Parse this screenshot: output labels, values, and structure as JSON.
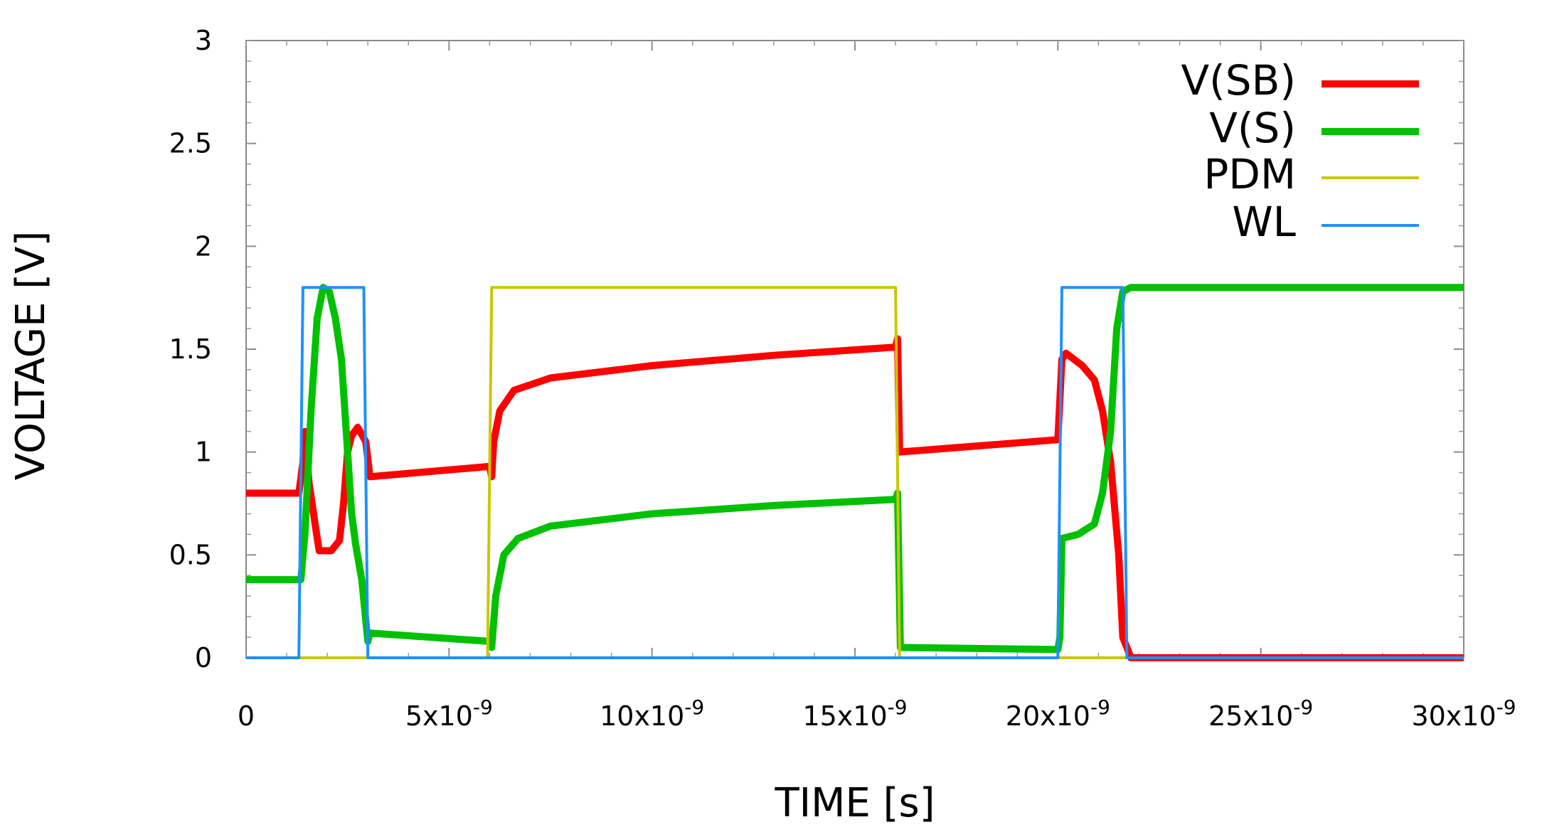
{
  "chart_data": {
    "type": "line",
    "title": "",
    "xlabel": "TIME [s]",
    "ylabel": "VOLTAGE [V]",
    "xlim": [
      0,
      3e-08
    ],
    "ylim": [
      0,
      3
    ],
    "grid": false,
    "legend_position": "top-right",
    "x_ticks": [
      {
        "value": 0,
        "mantissa": "0",
        "exp": ""
      },
      {
        "value": 5e-09,
        "mantissa": "5x10",
        "exp": "-9"
      },
      {
        "value": 1e-08,
        "mantissa": "10x10",
        "exp": "-9"
      },
      {
        "value": 1.5e-08,
        "mantissa": "15x10",
        "exp": "-9"
      },
      {
        "value": 2e-08,
        "mantissa": "20x10",
        "exp": "-9"
      },
      {
        "value": 2.5e-08,
        "mantissa": "25x10",
        "exp": "-9"
      },
      {
        "value": 3e-08,
        "mantissa": "30x10",
        "exp": "-9"
      }
    ],
    "y_ticks": [
      {
        "value": 0,
        "label": "0"
      },
      {
        "value": 0.5,
        "label": "0.5"
      },
      {
        "value": 1,
        "label": "1"
      },
      {
        "value": 1.5,
        "label": "1.5"
      },
      {
        "value": 2,
        "label": "2"
      },
      {
        "value": 2.5,
        "label": "2.5"
      },
      {
        "value": 3,
        "label": "3"
      }
    ],
    "series": [
      {
        "name": "V(SB)",
        "color": "#ff0000",
        "width": 10,
        "points": [
          [
            0,
            0.8
          ],
          [
            1.3e-09,
            0.8
          ],
          [
            1.4e-09,
            0.95
          ],
          [
            1.45e-09,
            1.1
          ],
          [
            1.55e-09,
            0.85
          ],
          [
            1.7e-09,
            0.65
          ],
          [
            1.8e-09,
            0.52
          ],
          [
            2.1e-09,
            0.52
          ],
          [
            2.3e-09,
            0.57
          ],
          [
            2.4e-09,
            0.75
          ],
          [
            2.5e-09,
            1.0
          ],
          [
            2.6e-09,
            1.08
          ],
          [
            2.75e-09,
            1.12
          ],
          [
            2.95e-09,
            1.05
          ],
          [
            3.05e-09,
            0.88
          ],
          [
            6e-09,
            0.93
          ],
          [
            6.05e-09,
            0.88
          ],
          [
            6.1e-09,
            1.05
          ],
          [
            6.25e-09,
            1.2
          ],
          [
            6.6e-09,
            1.3
          ],
          [
            7.5e-09,
            1.36
          ],
          [
            1e-08,
            1.42
          ],
          [
            1.3e-08,
            1.47
          ],
          [
            1.6e-08,
            1.51
          ],
          [
            1.605e-08,
            1.55
          ],
          [
            1.61e-08,
            1.0
          ],
          [
            2e-08,
            1.06
          ],
          [
            2.01e-08,
            1.45
          ],
          [
            2.02e-08,
            1.48
          ],
          [
            2.06e-08,
            1.42
          ],
          [
            2.09e-08,
            1.35
          ],
          [
            2.11e-08,
            1.2
          ],
          [
            2.13e-08,
            0.95
          ],
          [
            2.15e-08,
            0.5
          ],
          [
            2.16e-08,
            0.1
          ],
          [
            2.18e-08,
            0.0
          ],
          [
            3e-08,
            0.0
          ]
        ]
      },
      {
        "name": "V(S)",
        "color": "#00c000",
        "width": 10,
        "points": [
          [
            0,
            0.38
          ],
          [
            1.35e-09,
            0.38
          ],
          [
            1.45e-09,
            0.6
          ],
          [
            1.6e-09,
            1.2
          ],
          [
            1.75e-09,
            1.65
          ],
          [
            1.9e-09,
            1.8
          ],
          [
            2.05e-09,
            1.78
          ],
          [
            2.2e-09,
            1.65
          ],
          [
            2.35e-09,
            1.45
          ],
          [
            2.5e-09,
            1.0
          ],
          [
            2.6e-09,
            0.7
          ],
          [
            2.7e-09,
            0.55
          ],
          [
            2.85e-09,
            0.38
          ],
          [
            3e-09,
            0.08
          ],
          [
            3.05e-09,
            0.12
          ],
          [
            6e-09,
            0.08
          ],
          [
            6.05e-09,
            0.05
          ],
          [
            6.15e-09,
            0.3
          ],
          [
            6.35e-09,
            0.5
          ],
          [
            6.7e-09,
            0.58
          ],
          [
            7.5e-09,
            0.64
          ],
          [
            1e-08,
            0.7
          ],
          [
            1.3e-08,
            0.74
          ],
          [
            1.6e-08,
            0.77
          ],
          [
            1.605e-08,
            0.8
          ],
          [
            1.612e-08,
            0.05
          ],
          [
            2e-08,
            0.04
          ],
          [
            2.005e-08,
            0.1
          ],
          [
            2.01e-08,
            0.58
          ],
          [
            2.05e-08,
            0.6
          ],
          [
            2.09e-08,
            0.65
          ],
          [
            2.11e-08,
            0.8
          ],
          [
            2.13e-08,
            1.1
          ],
          [
            2.145e-08,
            1.6
          ],
          [
            2.16e-08,
            1.78
          ],
          [
            2.18e-08,
            1.8
          ],
          [
            3e-08,
            1.8
          ]
        ]
      },
      {
        "name": "PDM",
        "color": "#c8c800",
        "width": 4,
        "points": [
          [
            0,
            0
          ],
          [
            5.95e-09,
            0
          ],
          [
            6.05e-09,
            1.8
          ],
          [
            1.6e-08,
            1.8
          ],
          [
            1.61e-08,
            0
          ],
          [
            3e-08,
            0
          ]
        ]
      },
      {
        "name": "WL",
        "color": "#1e90ff",
        "width": 4,
        "points": [
          [
            0,
            0
          ],
          [
            1.3e-09,
            0
          ],
          [
            1.4e-09,
            1.8
          ],
          [
            2.9e-09,
            1.8
          ],
          [
            3e-09,
            0
          ],
          [
            2e-08,
            0
          ],
          [
            2.01e-08,
            1.8
          ],
          [
            2.16e-08,
            1.8
          ],
          [
            2.17e-08,
            0
          ],
          [
            3e-08,
            0
          ]
        ]
      }
    ]
  }
}
